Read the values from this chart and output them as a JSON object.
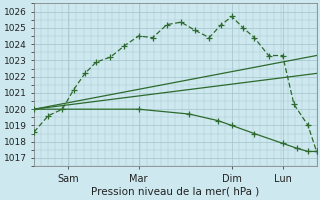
{
  "background_color": "#cde8ee",
  "grid_color": "#a8c8d0",
  "line_color": "#2d6a2d",
  "xlabel": "Pression niveau de la mer( hPa )",
  "ylim": [
    1016.5,
    1026.5
  ],
  "yticks": [
    1017,
    1018,
    1019,
    1020,
    1021,
    1022,
    1023,
    1024,
    1025,
    1026
  ],
  "xtick_labels": [
    "Sam",
    "Mar",
    "Dim",
    "Lun"
  ],
  "xtick_positions": [
    0.12,
    0.37,
    0.7,
    0.88
  ],
  "vline_x": [
    0.12,
    0.37,
    0.7,
    0.88
  ],
  "series": [
    {
      "x": [
        0.0,
        0.05,
        0.1,
        0.14,
        0.18,
        0.22,
        0.27,
        0.32,
        0.37,
        0.42,
        0.47,
        0.52,
        0.57,
        0.62,
        0.66,
        0.7,
        0.74,
        0.78,
        0.83,
        0.88,
        0.92,
        0.97,
        1.0
      ],
      "y": [
        1018.6,
        1019.6,
        1020.0,
        1021.2,
        1022.2,
        1022.9,
        1023.2,
        1023.9,
        1024.5,
        1024.4,
        1025.2,
        1025.35,
        1024.85,
        1024.4,
        1025.15,
        1025.7,
        1025.0,
        1024.4,
        1023.3,
        1023.3,
        1020.3,
        1019.0,
        1017.4
      ],
      "dashed": true
    },
    {
      "x": [
        0.0,
        1.0
      ],
      "y": [
        1020.0,
        1023.3
      ],
      "dashed": false
    },
    {
      "x": [
        0.0,
        1.0
      ],
      "y": [
        1020.0,
        1022.2
      ],
      "dashed": false
    },
    {
      "x": [
        0.0,
        0.37,
        0.55,
        0.65,
        0.7,
        0.78,
        0.88,
        0.93,
        0.97,
        1.0
      ],
      "y": [
        1020.0,
        1020.0,
        1019.7,
        1019.3,
        1019.0,
        1018.5,
        1017.9,
        1017.6,
        1017.4,
        1017.4
      ],
      "dashed": false
    }
  ]
}
